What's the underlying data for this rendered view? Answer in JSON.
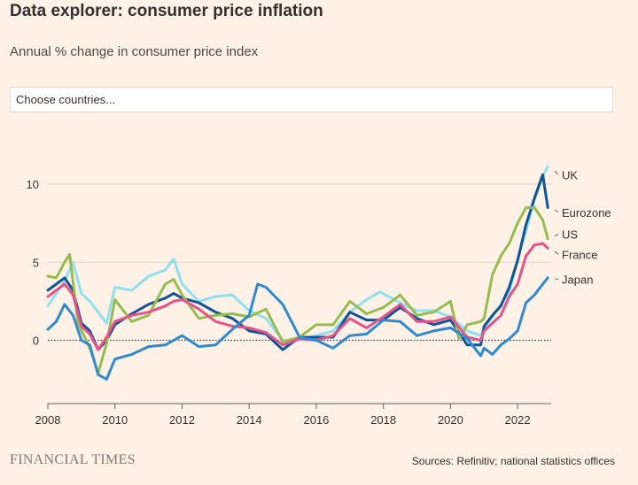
{
  "header": {
    "title_bold": "Data explorer:",
    "title_rest": " consumer price inflation",
    "subtitle": "Annual % change in consumer price index"
  },
  "chooser": {
    "placeholder": "Choose countries..."
  },
  "footer": {
    "logo": "FINANCIAL TIMES",
    "source": "Sources: Refinitiv; national statistics offices"
  },
  "chart_data": {
    "type": "line",
    "title": "Data explorer: consumer price inflation",
    "subtitle": "Annual % change in consumer price index",
    "ylabel": "",
    "xlabel": "",
    "xlim": [
      2008,
      2023
    ],
    "ylim": [
      -4,
      12
    ],
    "x_ticks": [
      "2008",
      "2010",
      "2012",
      "2014",
      "2016",
      "2018",
      "2020",
      "2022"
    ],
    "y_ticks": [
      "0",
      "5",
      "10"
    ],
    "zero_line": "dotted",
    "grid": "horizontal",
    "legend": "direct labels at right",
    "series": [
      {
        "name": "UK",
        "color": "#8ee0f0",
        "x": [
          2008,
          2008.5,
          2008.75,
          2009,
          2009.25,
          2009.5,
          2009.75,
          2010,
          2010.5,
          2011,
          2011.5,
          2011.75,
          2012,
          2012.5,
          2013,
          2013.5,
          2014,
          2014.5,
          2015,
          2015.5,
          2016,
          2016.5,
          2017,
          2017.5,
          2017.9,
          2018.5,
          2019,
          2019.5,
          2020,
          2020.5,
          2020.9,
          2021,
          2021.25,
          2021.5,
          2021.75,
          2022,
          2022.25,
          2022.5,
          2022.75,
          2022.9
        ],
        "y": [
          2.2,
          3.8,
          5.0,
          3.0,
          2.5,
          1.8,
          1.1,
          3.4,
          3.2,
          4.1,
          4.5,
          5.2,
          3.6,
          2.5,
          2.8,
          2.9,
          1.9,
          1.4,
          0.0,
          0.0,
          0.3,
          0.6,
          1.8,
          2.6,
          3.1,
          2.4,
          1.9,
          1.9,
          1.5,
          0.6,
          0.3,
          0.7,
          1.5,
          2.3,
          3.1,
          5.2,
          7.0,
          9.0,
          10.5,
          11.1
        ]
      },
      {
        "name": "Eurozone",
        "color": "#0f5499",
        "x": [
          2008,
          2008.25,
          2008.5,
          2008.75,
          2009,
          2009.25,
          2009.5,
          2009.75,
          2010,
          2010.5,
          2011,
          2011.5,
          2011.75,
          2012,
          2012.5,
          2013,
          2013.5,
          2014,
          2014.5,
          2015,
          2015.5,
          2016,
          2016.5,
          2017,
          2017.5,
          2018,
          2018.5,
          2019,
          2019.5,
          2020,
          2020.5,
          2020.9,
          2021,
          2021.25,
          2021.5,
          2021.75,
          2022,
          2022.25,
          2022.5,
          2022.75,
          2022.9
        ],
        "y": [
          3.2,
          3.6,
          4.0,
          3.2,
          1.1,
          0.6,
          -0.6,
          0.0,
          1.0,
          1.7,
          2.3,
          2.7,
          3.0,
          2.7,
          2.4,
          1.8,
          1.4,
          0.6,
          0.4,
          -0.6,
          0.2,
          0.2,
          0.2,
          1.8,
          1.3,
          1.3,
          2.1,
          1.4,
          1.0,
          1.3,
          -0.3,
          -0.3,
          0.9,
          1.6,
          2.2,
          3.4,
          5.1,
          7.4,
          9.1,
          10.6,
          8.5
        ]
      },
      {
        "name": "US",
        "color": "#96bb4f",
        "x": [
          2008,
          2008.25,
          2008.5,
          2008.65,
          2008.9,
          2009.25,
          2009.5,
          2009.75,
          2010,
          2010.5,
          2011,
          2011.5,
          2011.75,
          2012,
          2012.5,
          2013,
          2013.5,
          2014,
          2014.5,
          2015,
          2015.5,
          2016,
          2016.5,
          2017,
          2017.5,
          2018,
          2018.5,
          2019,
          2019.5,
          2020,
          2020.25,
          2020.5,
          2020.9,
          2021,
          2021.25,
          2021.5,
          2021.75,
          2022,
          2022.25,
          2022.5,
          2022.75,
          2022.9
        ],
        "y": [
          4.1,
          4.0,
          5.0,
          5.5,
          1.1,
          -0.5,
          -2.1,
          -0.2,
          2.6,
          1.2,
          1.6,
          3.6,
          3.9,
          2.9,
          1.4,
          1.6,
          1.7,
          1.5,
          2.0,
          -0.1,
          0.2,
          1.0,
          1.0,
          2.5,
          1.7,
          2.1,
          2.9,
          1.6,
          1.8,
          2.5,
          0.1,
          1.0,
          1.2,
          1.4,
          4.2,
          5.4,
          6.2,
          7.5,
          8.5,
          8.5,
          7.7,
          6.5
        ]
      },
      {
        "name": "France",
        "color": "#e5538a",
        "x": [
          2008,
          2008.5,
          2008.75,
          2009,
          2009.25,
          2009.5,
          2009.75,
          2010,
          2010.5,
          2011,
          2011.5,
          2011.75,
          2012,
          2012.5,
          2013,
          2013.5,
          2014,
          2014.5,
          2015,
          2015.5,
          2016,
          2016.5,
          2017,
          2017.5,
          2018,
          2018.5,
          2019,
          2019.5,
          2020,
          2020.5,
          2020.9,
          2021,
          2021.5,
          2021.75,
          2022,
          2022.25,
          2022.5,
          2022.75,
          2022.9
        ],
        "y": [
          2.8,
          3.6,
          2.9,
          0.9,
          0.4,
          -0.6,
          0.2,
          1.2,
          1.6,
          1.8,
          2.2,
          2.5,
          2.6,
          2.0,
          1.2,
          0.9,
          0.8,
          0.5,
          -0.3,
          0.1,
          0.0,
          0.3,
          1.4,
          0.8,
          1.5,
          2.3,
          1.2,
          1.2,
          1.5,
          0.2,
          0.0,
          0.6,
          1.6,
          2.8,
          3.6,
          5.4,
          6.1,
          6.2,
          5.9
        ]
      },
      {
        "name": "Japan",
        "color": "#2e8ad1",
        "x": [
          2008,
          2008.25,
          2008.5,
          2008.75,
          2009,
          2009.25,
          2009.5,
          2009.75,
          2010,
          2010.5,
          2011,
          2011.5,
          2012,
          2012.5,
          2013,
          2013.5,
          2014,
          2014.25,
          2014.5,
          2015,
          2015.5,
          2016,
          2016.5,
          2017,
          2017.5,
          2018,
          2018.5,
          2019,
          2019.5,
          2020,
          2020.5,
          2020.9,
          2021,
          2021.25,
          2021.5,
          2021.75,
          2022,
          2022.25,
          2022.5,
          2022.75,
          2022.9
        ],
        "y": [
          0.7,
          1.2,
          2.3,
          1.6,
          0.0,
          -0.3,
          -2.2,
          -2.5,
          -1.2,
          -0.9,
          -0.4,
          -0.3,
          0.3,
          -0.4,
          -0.3,
          0.7,
          1.6,
          3.6,
          3.4,
          2.3,
          0.2,
          0.0,
          -0.5,
          0.3,
          0.4,
          1.3,
          1.2,
          0.3,
          0.6,
          0.8,
          0.1,
          -1.0,
          -0.5,
          -0.9,
          -0.3,
          0.1,
          0.6,
          2.4,
          2.9,
          3.6,
          4.0
        ]
      }
    ],
    "labels": [
      "UK",
      "Eurozone",
      "US",
      "France",
      "Japan"
    ]
  }
}
